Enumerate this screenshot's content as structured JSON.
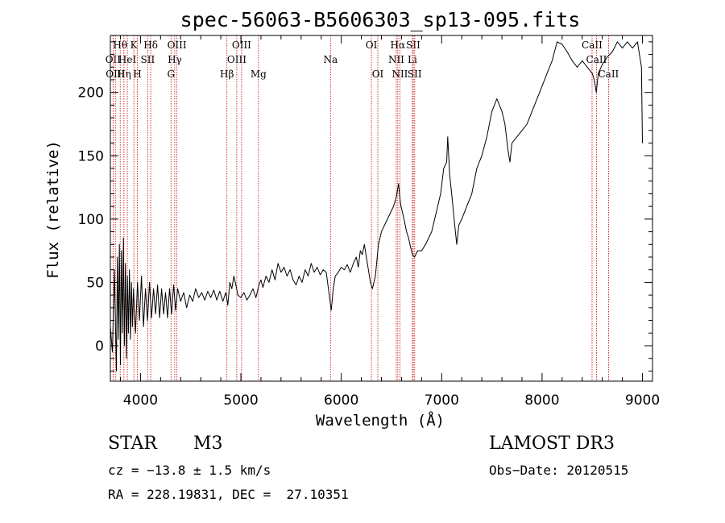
{
  "chart_data": {
    "type": "line",
    "title": "spec-56063-B5606303_sp13-095.fits",
    "xlabel": "Wavelength (Å)",
    "ylabel": "Flux (relative)",
    "xlim": [
      3700,
      9100
    ],
    "ylim": [
      -28,
      245
    ],
    "x_ticks": [
      4000,
      5000,
      6000,
      7000,
      8000,
      9000
    ],
    "y_ticks": [
      0,
      50,
      100,
      150,
      200
    ],
    "series": [
      {
        "name": "flux",
        "points": [
          [
            3700,
            15
          ],
          [
            3720,
            -5
          ],
          [
            3740,
            60
          ],
          [
            3760,
            -20
          ],
          [
            3770,
            70
          ],
          [
            3780,
            5
          ],
          [
            3790,
            80
          ],
          [
            3800,
            -15
          ],
          [
            3810,
            75
          ],
          [
            3820,
            10
          ],
          [
            3830,
            85
          ],
          [
            3840,
            0
          ],
          [
            3850,
            65
          ],
          [
            3860,
            -10
          ],
          [
            3870,
            55
          ],
          [
            3880,
            10
          ],
          [
            3890,
            60
          ],
          [
            3900,
            5
          ],
          [
            3910,
            50
          ],
          [
            3920,
            15
          ],
          [
            3930,
            45
          ],
          [
            3950,
            10
          ],
          [
            3970,
            50
          ],
          [
            3990,
            20
          ],
          [
            4010,
            55
          ],
          [
            4030,
            15
          ],
          [
            4050,
            45
          ],
          [
            4070,
            20
          ],
          [
            4090,
            50
          ],
          [
            4110,
            22
          ],
          [
            4130,
            45
          ],
          [
            4150,
            25
          ],
          [
            4170,
            48
          ],
          [
            4190,
            22
          ],
          [
            4210,
            45
          ],
          [
            4230,
            25
          ],
          [
            4250,
            42
          ],
          [
            4270,
            22
          ],
          [
            4290,
            45
          ],
          [
            4310,
            25
          ],
          [
            4330,
            48
          ],
          [
            4350,
            28
          ],
          [
            4370,
            45
          ],
          [
            4400,
            35
          ],
          [
            4430,
            42
          ],
          [
            4460,
            30
          ],
          [
            4490,
            40
          ],
          [
            4520,
            35
          ],
          [
            4550,
            45
          ],
          [
            4580,
            38
          ],
          [
            4610,
            42
          ],
          [
            4640,
            36
          ],
          [
            4670,
            43
          ],
          [
            4700,
            38
          ],
          [
            4730,
            44
          ],
          [
            4760,
            36
          ],
          [
            4790,
            43
          ],
          [
            4820,
            35
          ],
          [
            4850,
            42
          ],
          [
            4870,
            32
          ],
          [
            4890,
            50
          ],
          [
            4910,
            45
          ],
          [
            4930,
            55
          ],
          [
            4950,
            48
          ],
          [
            4970,
            40
          ],
          [
            5000,
            38
          ],
          [
            5030,
            42
          ],
          [
            5060,
            36
          ],
          [
            5090,
            40
          ],
          [
            5120,
            45
          ],
          [
            5150,
            38
          ],
          [
            5180,
            48
          ],
          [
            5200,
            52
          ],
          [
            5220,
            46
          ],
          [
            5250,
            55
          ],
          [
            5280,
            50
          ],
          [
            5310,
            60
          ],
          [
            5340,
            52
          ],
          [
            5370,
            65
          ],
          [
            5400,
            58
          ],
          [
            5430,
            62
          ],
          [
            5460,
            55
          ],
          [
            5490,
            60
          ],
          [
            5520,
            52
          ],
          [
            5550,
            48
          ],
          [
            5580,
            55
          ],
          [
            5610,
            50
          ],
          [
            5640,
            60
          ],
          [
            5670,
            55
          ],
          [
            5700,
            65
          ],
          [
            5730,
            58
          ],
          [
            5760,
            62
          ],
          [
            5790,
            56
          ],
          [
            5820,
            60
          ],
          [
            5850,
            58
          ],
          [
            5880,
            40
          ],
          [
            5900,
            28
          ],
          [
            5920,
            45
          ],
          [
            5940,
            55
          ],
          [
            5970,
            58
          ],
          [
            6000,
            62
          ],
          [
            6030,
            60
          ],
          [
            6060,
            64
          ],
          [
            6090,
            58
          ],
          [
            6120,
            65
          ],
          [
            6150,
            70
          ],
          [
            6170,
            62
          ],
          [
            6190,
            75
          ],
          [
            6210,
            72
          ],
          [
            6230,
            80
          ],
          [
            6250,
            70
          ],
          [
            6270,
            60
          ],
          [
            6290,
            50
          ],
          [
            6310,
            45
          ],
          [
            6340,
            55
          ],
          [
            6370,
            80
          ],
          [
            6400,
            90
          ],
          [
            6430,
            95
          ],
          [
            6460,
            100
          ],
          [
            6490,
            105
          ],
          [
            6520,
            110
          ],
          [
            6550,
            118
          ],
          [
            6570,
            128
          ],
          [
            6590,
            112
          ],
          [
            6610,
            105
          ],
          [
            6630,
            98
          ],
          [
            6650,
            90
          ],
          [
            6670,
            85
          ],
          [
            6690,
            78
          ],
          [
            6710,
            72
          ],
          [
            6730,
            70
          ],
          [
            6760,
            75
          ],
          [
            6800,
            75
          ],
          [
            6840,
            80
          ],
          [
            6870,
            85
          ],
          [
            6900,
            90
          ],
          [
            6930,
            100
          ],
          [
            6960,
            110
          ],
          [
            6990,
            120
          ],
          [
            7020,
            140
          ],
          [
            7050,
            145
          ],
          [
            7060,
            165
          ],
          [
            7080,
            135
          ],
          [
            7100,
            120
          ],
          [
            7130,
            95
          ],
          [
            7150,
            80
          ],
          [
            7170,
            95
          ],
          [
            7200,
            100
          ],
          [
            7250,
            110
          ],
          [
            7300,
            120
          ],
          [
            7350,
            140
          ],
          [
            7400,
            150
          ],
          [
            7450,
            165
          ],
          [
            7500,
            185
          ],
          [
            7550,
            195
          ],
          [
            7600,
            185
          ],
          [
            7630,
            175
          ],
          [
            7660,
            155
          ],
          [
            7680,
            145
          ],
          [
            7700,
            160
          ],
          [
            7750,
            165
          ],
          [
            7800,
            170
          ],
          [
            7850,
            175
          ],
          [
            7900,
            185
          ],
          [
            7950,
            195
          ],
          [
            8000,
            205
          ],
          [
            8050,
            215
          ],
          [
            8100,
            225
          ],
          [
            8150,
            240
          ],
          [
            8200,
            238
          ],
          [
            8250,
            232
          ],
          [
            8300,
            225
          ],
          [
            8350,
            220
          ],
          [
            8400,
            225
          ],
          [
            8450,
            220
          ],
          [
            8500,
            215
          ],
          [
            8520,
            210
          ],
          [
            8540,
            200
          ],
          [
            8560,
            215
          ],
          [
            8600,
            222
          ],
          [
            8650,
            228
          ],
          [
            8700,
            232
          ],
          [
            8750,
            240
          ],
          [
            8800,
            235
          ],
          [
            8850,
            240
          ],
          [
            8900,
            235
          ],
          [
            8950,
            240
          ],
          [
            8990,
            220
          ],
          [
            9000,
            160
          ]
        ]
      }
    ],
    "line_markers": [
      {
        "wavelength": 3727,
        "label": "OII",
        "row": 1
      },
      {
        "wavelength": 3750,
        "label": "OIII",
        "row": 2
      },
      {
        "wavelength": 3798,
        "label": "Hθ",
        "row": 0
      },
      {
        "wavelength": 3835,
        "label": "Hη",
        "row": 2
      },
      {
        "wavelength": 3869,
        "label": "HeI",
        "row": 1
      },
      {
        "wavelength": 3934,
        "label": "K",
        "row": 0
      },
      {
        "wavelength": 3969,
        "label": "H",
        "row": 2
      },
      {
        "wavelength": 4072,
        "label": "SII",
        "row": 1
      },
      {
        "wavelength": 4102,
        "label": "Hδ",
        "row": 0
      },
      {
        "wavelength": 4304,
        "label": "G",
        "row": 2
      },
      {
        "wavelength": 4341,
        "label": "Hγ",
        "row": 1
      },
      {
        "wavelength": 4363,
        "label": "OIII",
        "row": 0
      },
      {
        "wavelength": 4861,
        "label": "Hβ",
        "row": 2
      },
      {
        "wavelength": 4959,
        "label": "OIII",
        "row": 1
      },
      {
        "wavelength": 5007,
        "label": "OIII",
        "row": 0
      },
      {
        "wavelength": 5175,
        "label": "Mg",
        "row": 2
      },
      {
        "wavelength": 5893,
        "label": "Na",
        "row": 1
      },
      {
        "wavelength": 6300,
        "label": "OI",
        "row": 0
      },
      {
        "wavelength": 6364,
        "label": "OI",
        "row": 2
      },
      {
        "wavelength": 6548,
        "label": "NII",
        "row": 1
      },
      {
        "wavelength": 6563,
        "label": "Hα",
        "row": 0
      },
      {
        "wavelength": 6584,
        "label": "NII",
        "row": 2
      },
      {
        "wavelength": 6708,
        "label": "Li",
        "row": 1
      },
      {
        "wavelength": 6717,
        "label": "SII",
        "row": 0
      },
      {
        "wavelength": 6731,
        "label": "SII",
        "row": 2
      },
      {
        "wavelength": 8498,
        "label": "CaII",
        "row": 0
      },
      {
        "wavelength": 8542,
        "label": "CaII",
        "row": 1
      },
      {
        "wavelength": 8662,
        "label": "CaII",
        "row": 2
      }
    ]
  },
  "footer": {
    "class_label": "STAR",
    "subclass": "M3",
    "survey": "LAMOST DR3",
    "cz": "cz = −13.8 ± 1.5 km/s",
    "obs_date": "Obs−Date: 20120515",
    "coords": "RA = 228.19831, DEC =  27.10351"
  },
  "colors": {
    "line_marker": "#cc0000",
    "spectrum": "#000000"
  }
}
